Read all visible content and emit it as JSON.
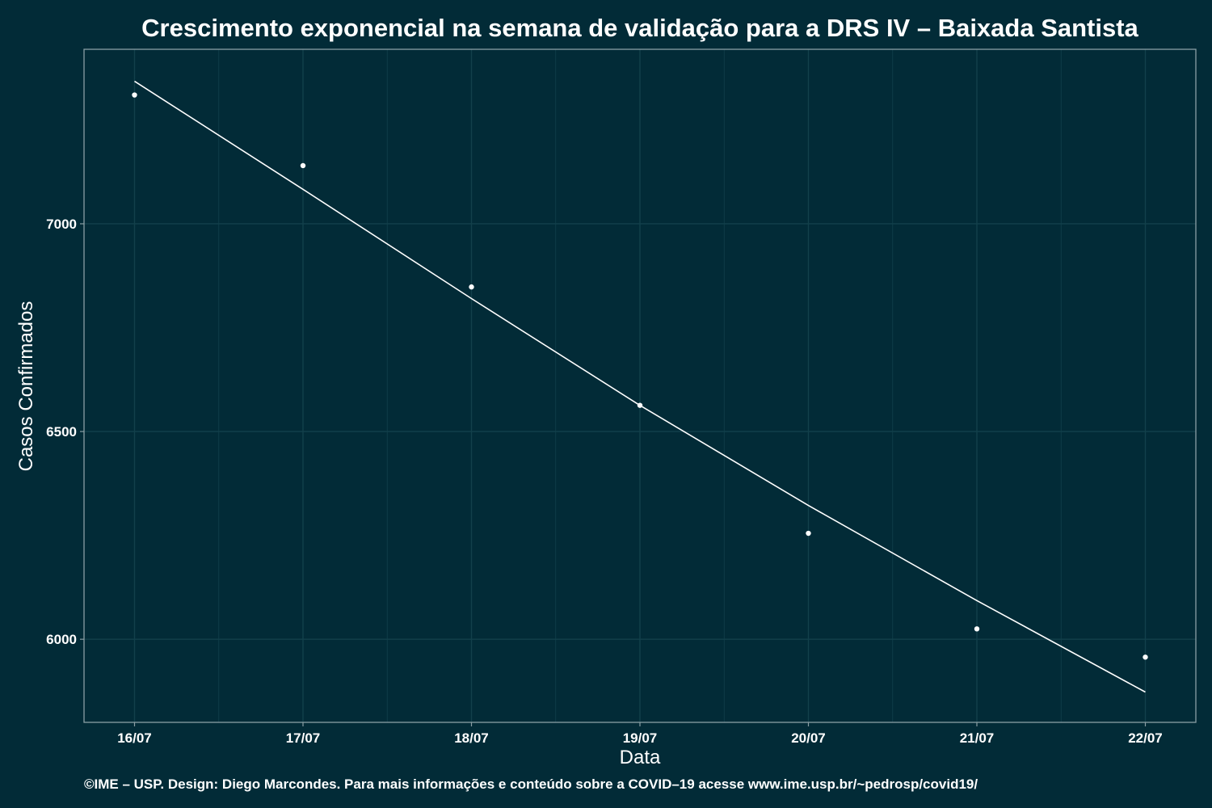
{
  "chart_data": {
    "type": "scatter",
    "title": "Crescimento exponencial na semana de validação para a DRS IV – Baixada Santista",
    "xlabel": "Data",
    "ylabel": "Casos Confirmados",
    "categories": [
      "16/07",
      "17/07",
      "18/07",
      "19/07",
      "20/07",
      "21/07",
      "22/07"
    ],
    "series": [
      {
        "type": "scatter",
        "values": [
          7310,
          7140,
          6848,
          6563,
          6255,
          6025,
          5957
        ]
      },
      {
        "type": "line",
        "values": [
          7343,
          7083,
          6820,
          6563,
          6322,
          6093,
          5873
        ]
      }
    ],
    "yticks": [
      6000,
      6500,
      7000
    ],
    "ylim": [
      5800,
      7420
    ],
    "grid": true,
    "legend": "none",
    "caption": "©IME – USP. Design: Diego Marcondes. Para mais informações e conteúdo sobre a COVID–19 acesse www.ime.usp.br/~pedrosp/covid19/",
    "colors": {
      "background": "#022b37",
      "panel_border": "#8a9ea4",
      "gridline": "#12404b",
      "marks": "#ffffff"
    }
  }
}
